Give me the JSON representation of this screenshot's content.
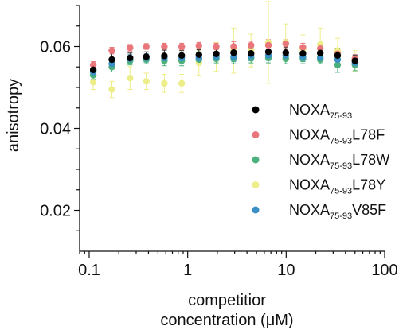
{
  "chart_data": {
    "type": "scatter",
    "title": "",
    "xlabel_line1": "competitior",
    "xlabel_line2": "concentration (μM)",
    "ylabel": "anisotropy",
    "xscale": "log",
    "xlim": [
      0.08,
      100
    ],
    "ylim": [
      0.01,
      0.07
    ],
    "xticks": [
      0.1,
      1,
      10,
      100
    ],
    "xtick_labels": [
      "0.1",
      "1",
      "10",
      "100"
    ],
    "yticks": [
      0.02,
      0.04,
      0.06
    ],
    "ytick_labels": [
      "0.02",
      "0.04",
      "0.06"
    ],
    "grid": false,
    "legend_position": "right",
    "series": [
      {
        "name": "NOXA75-93",
        "legend": {
          "base": "NOXA",
          "sub": "75-93",
          "suffix": ""
        },
        "color": "#000000",
        "x": [
          0.11,
          0.17,
          0.26,
          0.38,
          0.58,
          0.87,
          1.3,
          1.95,
          2.93,
          4.4,
          6.6,
          9.9,
          14.8,
          22.2,
          33.3,
          50
        ],
        "y": [
          0.0543,
          0.0568,
          0.0572,
          0.0575,
          0.0577,
          0.0578,
          0.058,
          0.0582,
          0.0585,
          0.0583,
          0.0587,
          0.0585,
          0.0583,
          0.0584,
          0.0578,
          0.0565
        ],
        "err": [
          0.001,
          0.0018,
          0.0012,
          0.0012,
          0.0014,
          0.0012,
          0.0012,
          0.0014,
          0.0015,
          0.0014,
          0.0015,
          0.0014,
          0.0014,
          0.0012,
          0.0018,
          0.0014
        ]
      },
      {
        "name": "NOXA75-93 L78F",
        "legend": {
          "base": "NOXA",
          "sub": "75-93",
          "suffix": "L78F"
        },
        "color": "#e8767a",
        "x": [
          0.11,
          0.17,
          0.26,
          0.38,
          0.58,
          0.87,
          1.3,
          1.95,
          2.93,
          4.4,
          6.6,
          9.9,
          14.8,
          22.2,
          33.3,
          50
        ],
        "y": [
          0.0555,
          0.059,
          0.0597,
          0.06,
          0.06,
          0.06,
          0.0602,
          0.06,
          0.06,
          0.0603,
          0.0603,
          0.0607,
          0.0598,
          0.0595,
          0.0582,
          0.057
        ],
        "err": [
          0.0008,
          0.0008,
          0.0008,
          0.0007,
          0.0008,
          0.0008,
          0.0008,
          0.0008,
          0.0012,
          0.001,
          0.0014,
          0.001,
          0.001,
          0.001,
          0.0014,
          0.001
        ]
      },
      {
        "name": "NOXA75-93 L78W",
        "legend": {
          "base": "NOXA",
          "sub": "75-93",
          "suffix": "L78W"
        },
        "color": "#4cb07c",
        "x": [
          0.11,
          0.17,
          0.26,
          0.38,
          0.58,
          0.87,
          1.3,
          1.95,
          2.93,
          4.4,
          6.6,
          9.9,
          14.8,
          22.2,
          33.3,
          50
        ],
        "y": [
          0.053,
          0.055,
          0.0565,
          0.0568,
          0.0565,
          0.0565,
          0.0568,
          0.057,
          0.057,
          0.0572,
          0.0572,
          0.057,
          0.057,
          0.0568,
          0.0555,
          0.0555
        ],
        "err": [
          0.001,
          0.0012,
          0.001,
          0.001,
          0.0012,
          0.0012,
          0.001,
          0.001,
          0.0012,
          0.0012,
          0.0012,
          0.0012,
          0.0012,
          0.001,
          0.0018,
          0.0014
        ]
      },
      {
        "name": "NOXA75-93 L78Y",
        "legend": {
          "base": "NOXA",
          "sub": "75-93",
          "suffix": "L78Y"
        },
        "color": "#eded8a",
        "x": [
          0.11,
          0.17,
          0.26,
          0.38,
          0.58,
          0.87,
          1.3,
          1.95,
          2.93,
          4.4,
          6.6,
          9.9,
          14.8,
          22.2,
          33.3,
          50
        ],
        "y": [
          0.0513,
          0.0495,
          0.0523,
          0.0515,
          0.051,
          0.051,
          0.056,
          0.0575,
          0.059,
          0.059,
          0.061,
          0.061,
          0.0593,
          0.0605,
          0.059,
          0.0565
        ],
        "err": [
          0.0018,
          0.002,
          0.0028,
          0.002,
          0.0022,
          0.0022,
          0.003,
          0.0035,
          0.0055,
          0.004,
          0.01,
          0.0045,
          0.0035,
          0.004,
          0.003,
          0.0025
        ]
      },
      {
        "name": "NOXA75-93 V85F",
        "legend": {
          "base": "NOXA",
          "sub": "75-93",
          "suffix": "V85F"
        },
        "color": "#3a8fc4",
        "x": [
          0.11,
          0.17,
          0.26,
          0.38,
          0.58,
          0.87,
          1.3,
          1.95,
          2.93,
          4.4,
          6.6,
          9.9,
          14.8,
          22.2,
          33.3,
          50
        ],
        "y": [
          0.0538,
          0.0558,
          0.057,
          0.0572,
          0.0572,
          0.0572,
          0.0572,
          0.0575,
          0.0575,
          0.0577,
          0.0578,
          0.0578,
          0.0575,
          0.0573,
          0.0568,
          0.056
        ],
        "err": [
          0.001,
          0.0012,
          0.001,
          0.001,
          0.001,
          0.001,
          0.001,
          0.001,
          0.0012,
          0.0012,
          0.0012,
          0.0012,
          0.0012,
          0.001,
          0.0014,
          0.0012
        ]
      }
    ]
  }
}
